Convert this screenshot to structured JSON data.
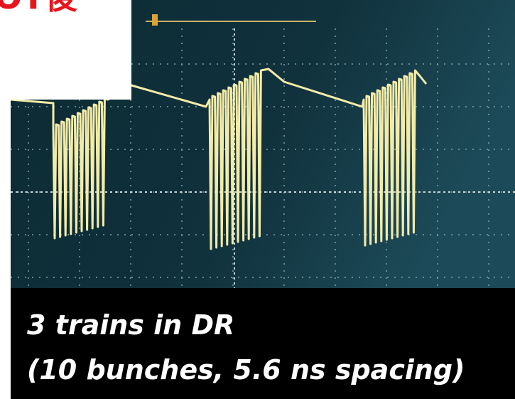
{
  "header": {
    "title": "OT後"
  },
  "caption": {
    "line1": "3 trains in DR",
    "line2": "(10 bunches, 5.6 ns spacing)"
  }
}
